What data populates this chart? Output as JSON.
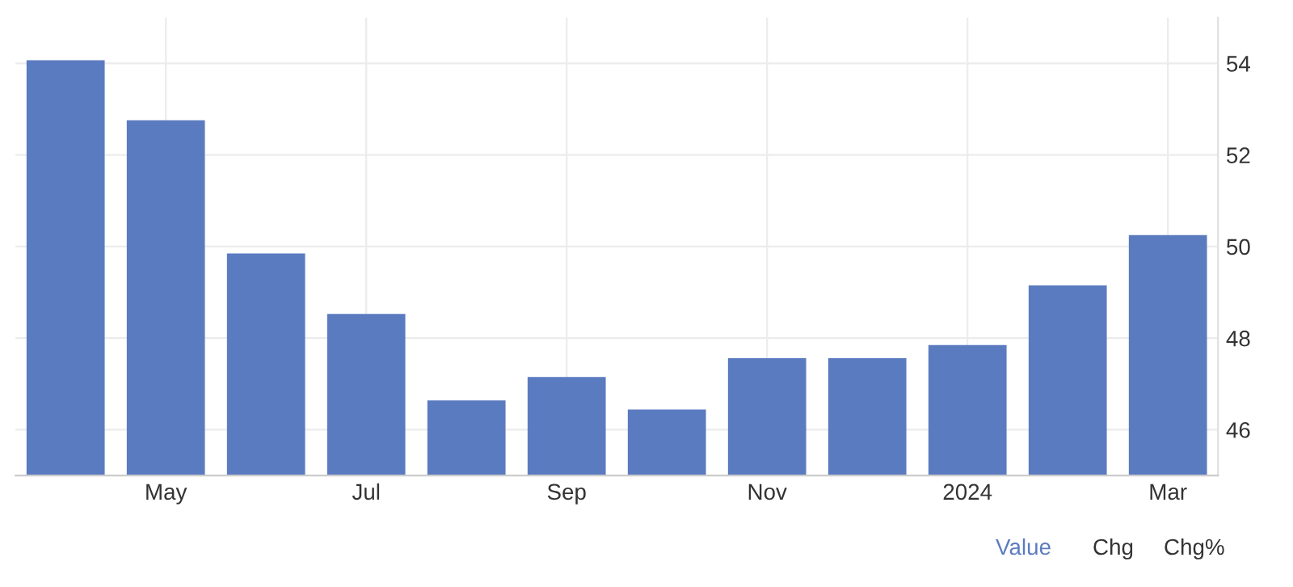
{
  "chart_data": {
    "type": "bar",
    "categories": [
      null,
      "May",
      null,
      "Jul",
      null,
      "Sep",
      null,
      "Nov",
      null,
      "2024",
      null,
      "Mar"
    ],
    "values": [
      54.07,
      52.76,
      49.85,
      48.53,
      46.64,
      47.15,
      46.44,
      47.56,
      47.56,
      47.85,
      49.15,
      50.25
    ],
    "color": "#5b7bc0",
    "ylim": [
      45,
      55
    ],
    "yticks": [
      46,
      48,
      50,
      52,
      54
    ],
    "grid": true,
    "legend": false,
    "annotations": [
      "Value",
      "Chg",
      "Chg%"
    ]
  }
}
